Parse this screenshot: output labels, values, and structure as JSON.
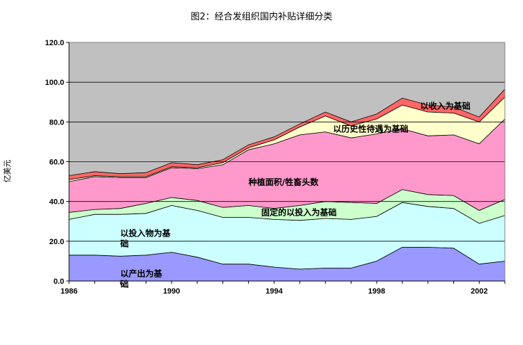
{
  "chart_data": {
    "type": "area",
    "title": "图2：经合发组织国内补贴详细分类",
    "ylabel": "亿美元",
    "xlabel": "",
    "stacked": true,
    "x": [
      1986,
      1987,
      1988,
      1989,
      1990,
      1991,
      1992,
      1993,
      1994,
      1995,
      1996,
      1997,
      1998,
      1999,
      2000,
      2001,
      2002,
      2003
    ],
    "xticks": [
      1986,
      1990,
      1994,
      1998,
      2002
    ],
    "yticks": [
      0,
      20,
      40,
      60,
      80,
      100,
      120
    ],
    "ylim": [
      0,
      120
    ],
    "xlim": [
      1986,
      2003
    ],
    "yticklabels": [
      "0.0",
      "20.0",
      "40.0",
      "60.0",
      "80.0",
      "100.0",
      "120.0"
    ],
    "grid": true,
    "background": "#c0c0c0",
    "series": [
      {
        "name": "以产出为基础",
        "color": "#9999ff",
        "values": [
          13,
          13,
          12.5,
          13,
          14.5,
          12,
          8.5,
          8.5,
          7,
          6,
          6.5,
          6.5,
          10,
          17,
          17,
          16.5,
          8.5,
          10
        ]
      },
      {
        "name": "以投入物为基础",
        "color": "#ccffff",
        "values": [
          18,
          20.5,
          21,
          21,
          23.5,
          23.5,
          23.5,
          23.5,
          24,
          24.5,
          25,
          24.5,
          22.5,
          22.5,
          20.5,
          20,
          20.5,
          23
        ]
      },
      {
        "name": "固定的以投入为基础",
        "color": "#ccffcc",
        "values": [
          3.5,
          2.5,
          3,
          5,
          4,
          5,
          5,
          6,
          5.5,
          7.5,
          8.5,
          8.5,
          6.5,
          6.5,
          6,
          6.5,
          6.5,
          8
        ]
      },
      {
        "name": "种植面积/牲畜头数",
        "color": "#ff99cc",
        "values": [
          15.5,
          16.5,
          15.5,
          13,
          15,
          16,
          21.5,
          28,
          32.5,
          35.5,
          35,
          32.5,
          35,
          30.5,
          29.5,
          30.5,
          33.5,
          40.5
        ]
      },
      {
        "name": "以历史性待遇为基础",
        "color": "#ffffcc",
        "values": [
          1,
          0.5,
          0.5,
          0.5,
          0.5,
          0.5,
          1,
          1,
          2,
          4,
          8,
          6,
          7.5,
          12,
          12,
          11,
          11,
          11
        ]
      },
      {
        "name": "以收入为基础",
        "color": "#ff6666",
        "values": [
          2,
          2,
          1.5,
          2,
          2,
          1.5,
          1.5,
          1.5,
          1.5,
          1.5,
          2,
          2,
          2.5,
          3.5,
          3.5,
          3,
          2.5,
          4
        ]
      }
    ],
    "annotations": [
      {
        "text": "以收入为基础",
        "series": 5
      },
      {
        "text": "以历史性待遇为基础",
        "series": 4
      },
      {
        "text": "种植面积/牲畜头数",
        "series": 3
      },
      {
        "text": "固定的以投入为基础",
        "series": 2
      },
      {
        "text": "以投入物为基",
        "series": 1
      },
      {
        "text": "础",
        "series": 1
      },
      {
        "text": "以产出为基",
        "series": 0
      },
      {
        "text": "础",
        "series": 0
      }
    ]
  }
}
